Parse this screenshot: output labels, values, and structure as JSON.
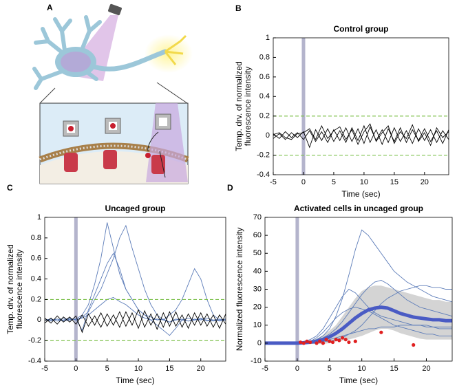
{
  "panel_a_label": "A",
  "chart_data": [
    {
      "type": "line",
      "panel": "B",
      "title": "Control group",
      "ylabel": [
        "Temp. drv. of normalized",
        "fluorescence intensity"
      ],
      "xlabel": "Time (sec)",
      "xlim": [
        -5,
        24
      ],
      "xticks": [
        -5,
        0,
        5,
        10,
        15,
        20
      ],
      "ylim": [
        -0.4,
        1
      ],
      "yticks": [
        -0.4,
        -0.2,
        0,
        0.2,
        0.4,
        0.6,
        0.8,
        1
      ],
      "thresholds": [
        0.2,
        -0.2
      ],
      "threshold_color": "#7cc04a",
      "stimulus_x": 0,
      "stimulus_color": "#b4b4cc",
      "x": [
        -5,
        -4,
        -3,
        -2,
        -1,
        0,
        1,
        2,
        3,
        4,
        5,
        6,
        7,
        8,
        9,
        10,
        11,
        12,
        13,
        14,
        15,
        16,
        17,
        18,
        19,
        20,
        21,
        22,
        23,
        24
      ],
      "series": [
        {
          "color": "#000000",
          "values": [
            0.02,
            -0.03,
            0.04,
            -0.02,
            0.03,
            -0.04,
            0.05,
            -0.06,
            0.04,
            -0.07,
            0.06,
            -0.05,
            0.08,
            -0.06,
            0.07,
            -0.08,
            0.09,
            -0.05,
            0.06,
            -0.07,
            0.08,
            -0.06,
            0.05,
            -0.08,
            0.07,
            -0.05,
            0.06,
            -0.07,
            0.05,
            -0.04
          ]
        },
        {
          "color": "#000000",
          "values": [
            -0.03,
            0.02,
            -0.04,
            0.03,
            -0.02,
            0.04,
            -0.12,
            0.06,
            -0.05,
            0.07,
            -0.06,
            0.05,
            -0.07,
            0.08,
            -0.05,
            0.1,
            -0.07,
            0.06,
            -0.09,
            0.07,
            -0.06,
            0.08,
            -0.07,
            0.06,
            -0.05,
            0.07,
            -0.06,
            0.05,
            -0.08,
            0.06
          ]
        },
        {
          "color": "#000000",
          "values": [
            0.01,
            0.03,
            -0.02,
            -0.04,
            0.02,
            0.03,
            0.07,
            -0.04,
            0.1,
            -0.03,
            0.05,
            0.09,
            -0.04,
            0.06,
            -0.09,
            0.04,
            0.12,
            -0.06,
            0.03,
            0.1,
            -0.08,
            0.04,
            -0.03,
            0.11,
            -0.06,
            0.03,
            -0.1,
            0.08,
            -0.02,
            0.04
          ]
        }
      ]
    },
    {
      "type": "line",
      "panel": "C",
      "title": "Uncaged group",
      "ylabel": [
        "Temp. drv. of normalized",
        "fluorescence intensity"
      ],
      "xlabel": "Time (sec)",
      "xlim": [
        -5,
        24
      ],
      "xticks": [
        -5,
        0,
        5,
        10,
        15,
        20
      ],
      "ylim": [
        -0.4,
        1
      ],
      "yticks": [
        -0.4,
        -0.2,
        0,
        0.2,
        0.4,
        0.6,
        0.8,
        1
      ],
      "thresholds": [
        0.2,
        -0.2
      ],
      "threshold_color": "#7cc04a",
      "stimulus_x": 0,
      "stimulus_color": "#b4b4cc",
      "x": [
        -5,
        -4,
        -3,
        -2,
        -1,
        0,
        1,
        2,
        3,
        4,
        5,
        6,
        7,
        8,
        9,
        10,
        11,
        12,
        13,
        14,
        15,
        16,
        17,
        18,
        19,
        20,
        21,
        22,
        23,
        24
      ],
      "series": [
        {
          "color": "#5b7bb8",
          "values": [
            0,
            0.01,
            -0.01,
            0.02,
            0,
            0.01,
            0.05,
            0.15,
            0.35,
            0.6,
            0.95,
            0.7,
            0.45,
            0.3,
            0.2,
            0.1,
            0.05,
            0.03,
            0,
            0.01,
            -0.02,
            0,
            0.01,
            -0.01,
            0,
            0.02,
            -0.01,
            0,
            0.01,
            0
          ]
        },
        {
          "color": "#5b7bb8",
          "values": [
            0,
            -0.01,
            0.01,
            0,
            0.02,
            0,
            0.03,
            0.08,
            0.2,
            0.3,
            0.45,
            0.6,
            0.8,
            0.92,
            0.7,
            0.5,
            0.3,
            0.15,
            0.05,
            0,
            -0.02,
            0.01,
            0,
            -0.01,
            0.01,
            0,
            0.02,
            0,
            -0.01,
            0
          ]
        },
        {
          "color": "#5b7bb8",
          "values": [
            0,
            0.01,
            -0.01,
            0,
            0.01,
            0,
            0.02,
            0.05,
            0.1,
            0.15,
            0.2,
            0.22,
            0.18,
            0.15,
            0.1,
            0.05,
            0.02,
            0,
            0.01,
            0,
            0.05,
            0.1,
            0.2,
            0.35,
            0.5,
            0.4,
            0.2,
            0.05,
            0,
            0.01
          ]
        },
        {
          "color": "#5b7bb8",
          "values": [
            0,
            0,
            0.01,
            -0.01,
            0,
            0.01,
            -0.1,
            0.1,
            0.25,
            0.4,
            0.55,
            0.65,
            0.5,
            0.3,
            0.2,
            0.1,
            0.05,
            0,
            -0.05,
            -0.1,
            -0.15,
            -0.08,
            0,
            0.02,
            0,
            0.01,
            0,
            -0.01,
            0,
            0
          ]
        },
        {
          "color": "#000000",
          "values": [
            0.02,
            -0.03,
            0.04,
            -0.02,
            0.03,
            -0.04,
            0.05,
            -0.06,
            0.04,
            -0.07,
            0.06,
            -0.05,
            0.08,
            -0.06,
            0.07,
            -0.08,
            0.09,
            -0.05,
            0.06,
            -0.07,
            0.08,
            -0.06,
            0.05,
            -0.08,
            0.07,
            -0.05,
            0.06,
            -0.07,
            0.05,
            -0.04
          ]
        },
        {
          "color": "#000000",
          "values": [
            -0.03,
            0.02,
            -0.04,
            0.03,
            -0.02,
            0.04,
            -0.12,
            0.06,
            -0.05,
            0.07,
            -0.06,
            0.05,
            -0.07,
            0.08,
            -0.05,
            0.1,
            -0.07,
            0.06,
            -0.09,
            0.07,
            -0.06,
            0.08,
            -0.07,
            0.06,
            -0.05,
            0.07,
            -0.06,
            0.05,
            -0.08,
            0.06
          ]
        }
      ]
    },
    {
      "type": "line",
      "panel": "D",
      "title": "Activated cells in uncaged group",
      "ylabel": [
        "Normalized fluorescence intensity"
      ],
      "xlabel": "Time (sec)",
      "xlim": [
        -5,
        24
      ],
      "xticks": [
        -5,
        0,
        5,
        10,
        15,
        20
      ],
      "ylim": [
        -10,
        70
      ],
      "yticks": [
        -10,
        0,
        10,
        20,
        30,
        40,
        50,
        60,
        70
      ],
      "stimulus_x": 0,
      "stimulus_color": "#b4b4cc",
      "x": [
        -5,
        -4,
        -3,
        -2,
        -1,
        0,
        1,
        2,
        3,
        4,
        5,
        6,
        7,
        8,
        9,
        10,
        11,
        12,
        13,
        14,
        15,
        16,
        17,
        18,
        19,
        20,
        21,
        22,
        23,
        24
      ],
      "band": {
        "color": "#d4d4d4",
        "upper": [
          0.5,
          0.5,
          0.5,
          0.5,
          0.5,
          0.5,
          0.8,
          1.5,
          2.5,
          4.5,
          7,
          10,
          15,
          20,
          25,
          29,
          31,
          32,
          32,
          31,
          30,
          29,
          28,
          27,
          26,
          25,
          24,
          24,
          23,
          23
        ],
        "lower": [
          -0.5,
          -0.5,
          -0.5,
          -0.5,
          -0.5,
          -0.5,
          -0.4,
          -0.5,
          -0.5,
          -0.5,
          0,
          1,
          1.5,
          2,
          3,
          4,
          5.5,
          7,
          8,
          8,
          7,
          5.5,
          4.5,
          3.5,
          2.5,
          2,
          2,
          2,
          2,
          2
        ]
      },
      "series": [
        {
          "color": "#5b7bb8",
          "values": [
            0,
            0,
            0,
            0,
            0,
            0,
            0.5,
            1,
            2,
            4,
            8,
            15,
            25,
            38,
            52,
            63,
            60,
            55,
            50,
            45,
            40,
            37,
            34,
            32,
            30,
            28,
            26,
            25,
            24,
            23
          ]
        },
        {
          "color": "#5b7bb8",
          "values": [
            0,
            0,
            0,
            0,
            0,
            0,
            0,
            1,
            2,
            3,
            5,
            8,
            12,
            17,
            22,
            27,
            31,
            34,
            35,
            33,
            30,
            27,
            24,
            22,
            20,
            19,
            18,
            17,
            16,
            15
          ]
        },
        {
          "color": "#5b7bb8",
          "values": [
            0,
            0,
            0,
            0,
            0,
            0,
            1,
            2,
            4,
            8,
            14,
            20,
            26,
            30,
            28,
            24,
            20,
            17,
            15,
            14,
            13,
            12,
            11,
            10,
            10,
            9,
            9,
            8,
            8,
            8
          ]
        },
        {
          "color": "#5b7bb8",
          "values": [
            0,
            0,
            0,
            0,
            0,
            0,
            0,
            0,
            1,
            1,
            2,
            3,
            4,
            5,
            6,
            7,
            8,
            8,
            9,
            9,
            9,
            10,
            10,
            10,
            10,
            10,
            9,
            9,
            9,
            9
          ]
        },
        {
          "color": "#5b7bb8",
          "values": [
            0,
            0,
            0,
            0,
            0,
            0,
            0,
            0,
            0,
            1,
            1,
            2,
            3,
            5,
            7,
            10,
            14,
            18,
            22,
            25,
            27,
            29,
            30,
            31,
            32,
            32,
            31,
            31,
            30,
            30
          ]
        },
        {
          "color": "#5b7bb8",
          "values": [
            0,
            0,
            0,
            0,
            0,
            0,
            0,
            1,
            3,
            6,
            10,
            14,
            17,
            19,
            20,
            19,
            18,
            16,
            14,
            12,
            10,
            9,
            8,
            7,
            6,
            5,
            5,
            4,
            4,
            4
          ]
        },
        {
          "color": "#4a5bc4",
          "width": 5,
          "values": [
            0,
            0,
            0,
            0,
            0,
            0,
            0.2,
            0.5,
            1,
            2,
            3.5,
            5.5,
            8,
            11,
            14,
            16.5,
            18.5,
            19.5,
            20,
            19.5,
            18,
            16.5,
            15.5,
            14.5,
            14,
            13.5,
            13,
            13,
            12.5,
            12.5
          ]
        }
      ],
      "points": {
        "color": "#e02020",
        "x": [
          0.5,
          1,
          1.5,
          2,
          3,
          3.5,
          4,
          4.5,
          5,
          5.5,
          6,
          6.5,
          7,
          7.5,
          8,
          9,
          13,
          18
        ],
        "y": [
          0.5,
          0,
          1,
          0.5,
          0,
          1,
          0,
          2,
          1,
          0.5,
          2,
          1.5,
          3,
          2,
          0.5,
          1,
          6,
          -1
        ]
      }
    }
  ]
}
